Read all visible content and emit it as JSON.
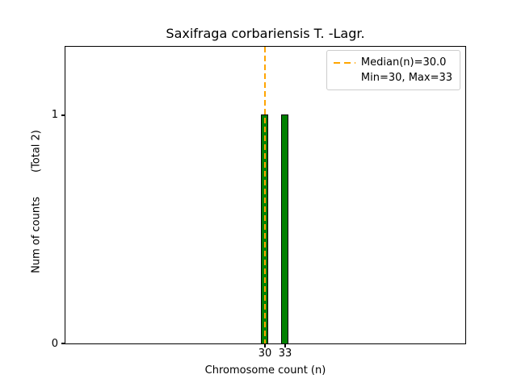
{
  "figure": {
    "title": "Saxifraga corbariensis T. -Lagr.",
    "xlabel": "Chromosome count (n)",
    "ylabel": "Num of counts",
    "ylabel_total": "(Total 2)",
    "yticks": [
      "0",
      "1"
    ],
    "xticks": [
      "30",
      "33"
    ]
  },
  "legend": {
    "median_label": "Median(n)=30.0",
    "minmax_label": "Min=30, Max=33"
  },
  "colors": {
    "bar_fill": "#008000",
    "bar_edge": "#000000",
    "median_line": "#FFA500",
    "legend_border": "#cccccc",
    "background": "#ffffff"
  },
  "chart_data": {
    "type": "bar",
    "title": "Saxifraga corbariensis T. -Lagr.",
    "xlabel": "Chromosome count (n)",
    "ylabel": "Num of counts (Total 2)",
    "categories": [
      30,
      33
    ],
    "values": [
      1,
      1
    ],
    "total_counts": 2,
    "median": 30.0,
    "min": 30,
    "max": 33,
    "xticks": [
      30,
      33
    ],
    "yticks": [
      0,
      1
    ],
    "ylim": [
      0,
      1.3
    ],
    "grid": false,
    "legend_position": "upper right",
    "legend_entries": [
      "Median(n)=30.0",
      "Min=30, Max=33"
    ],
    "median_line": {
      "x": 30,
      "style": "dashed",
      "color": "#FFA500"
    },
    "bar_style": {
      "fill": "#008000",
      "edge": "#000000",
      "bin_width": 1
    }
  }
}
